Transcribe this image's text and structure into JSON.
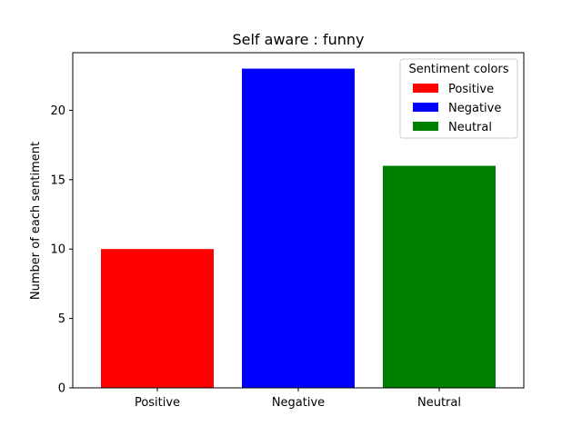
{
  "chart_data": {
    "type": "bar",
    "title": "Self aware : funny",
    "xlabel": "",
    "ylabel": "Number of each sentiment",
    "categories": [
      "Positive",
      "Negative",
      "Neutral"
    ],
    "values": [
      10,
      23,
      16
    ],
    "colors": [
      "#ff0000",
      "#0000ff",
      "#008000"
    ],
    "ylim": [
      0,
      24.15
    ],
    "yticks": [
      0,
      5,
      10,
      15,
      20
    ],
    "grid": false,
    "legend": {
      "title": "Sentiment colors",
      "placement": "top-right",
      "entries": [
        {
          "label": "Positive",
          "color": "#ff0000"
        },
        {
          "label": "Negative",
          "color": "#0000ff"
        },
        {
          "label": "Neutral",
          "color": "#008000"
        }
      ]
    }
  }
}
